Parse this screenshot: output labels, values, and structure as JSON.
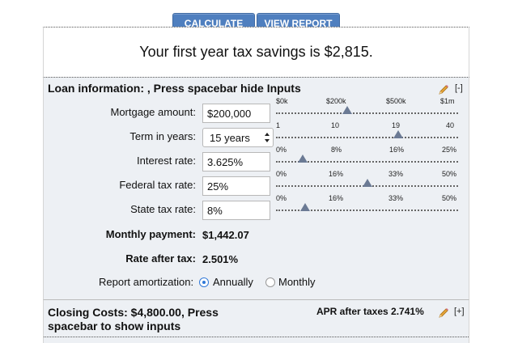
{
  "toolbar": {
    "calculate_label": "CALCULATE",
    "view_report_label": "VIEW REPORT"
  },
  "savings": {
    "text": "Your first year tax savings is $2,815."
  },
  "loan": {
    "header": "Loan information: , Press spacebar hide Inputs",
    "toggle": "[-]",
    "mortgage": {
      "label": "Mortgage amount:",
      "value": "$200,000",
      "ticks": [
        "$0k",
        "$200k",
        "$500k",
        "$1m"
      ],
      "position": 0.39
    },
    "term": {
      "label": "Term in years:",
      "value": "15 years",
      "ticks": [
        "1",
        "10",
        "19",
        "40"
      ],
      "position": 0.67
    },
    "interest": {
      "label": "Interest rate:",
      "value": "3.625%",
      "ticks": [
        "0%",
        "8%",
        "16%",
        "25%"
      ],
      "position": 0.145
    },
    "federal": {
      "label": "Federal tax rate:",
      "value": "25%",
      "ticks": [
        "0%",
        "16%",
        "33%",
        "50%"
      ],
      "position": 0.5
    },
    "state": {
      "label": "State tax rate:",
      "value": "8%",
      "ticks": [
        "0%",
        "16%",
        "33%",
        "50%"
      ],
      "position": 0.16
    },
    "monthly_payment": {
      "label": "Monthly payment:",
      "value": "$1,442.07"
    },
    "rate_after_tax": {
      "label": "Rate after tax:",
      "value": "2.501%"
    },
    "amortization": {
      "label": "Report amortization:",
      "options": [
        "Annually",
        "Monthly"
      ],
      "selected": "Annually"
    }
  },
  "closing": {
    "text": "Closing Costs: $4,800.00, Press spacebar to show inputs",
    "apr": "APR after taxes 2.741%",
    "toggle": "[+]"
  },
  "colors": {
    "button": "#4f7fbf",
    "panel_bg": "#edf0f4",
    "thumb": "#6b7a94",
    "radio": "#2f78d8"
  }
}
